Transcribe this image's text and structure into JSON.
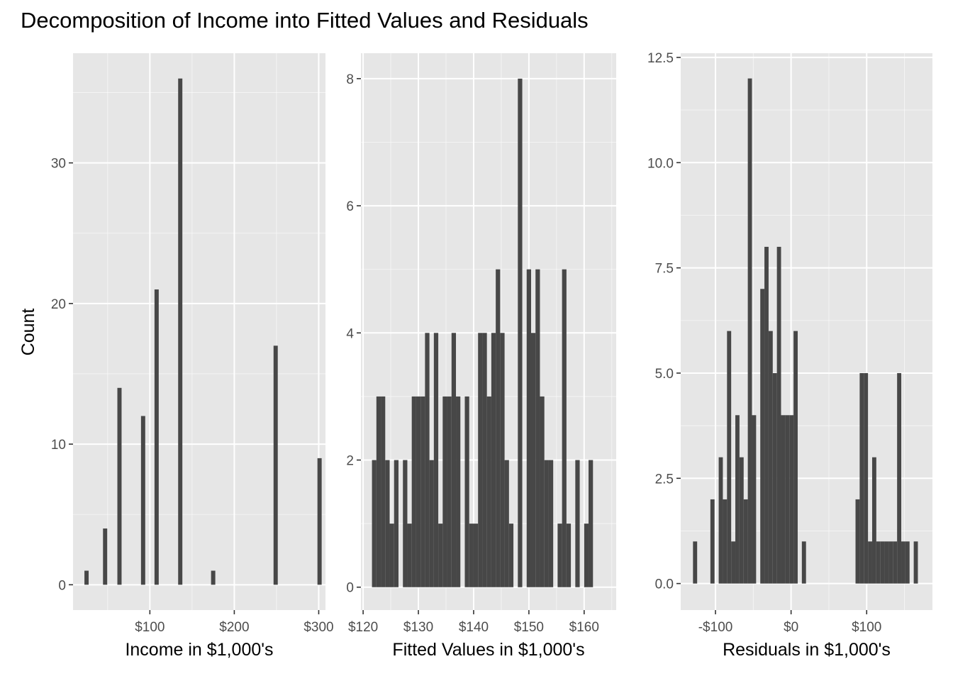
{
  "title": "Decomposition of Income into Fitted Values and Residuals",
  "ylabel": "Count",
  "colors": {
    "panel": "#e6e6e6",
    "grid_major": "#ffffff",
    "bar": "#474747",
    "tick_text": "#4d4d4d"
  },
  "chart_data": [
    {
      "type": "bar",
      "xlabel": "Income  in $1,000's",
      "xlim": [
        9,
        308
      ],
      "ylim": [
        -1.8,
        37.8
      ],
      "bin_width": 5,
      "x_ticks": [
        {
          "value": 100,
          "label": "$100"
        },
        {
          "value": 200,
          "label": "$200"
        },
        {
          "value": 300,
          "label": "$300"
        }
      ],
      "y_ticks": [
        {
          "value": 0,
          "label": "0"
        },
        {
          "value": 10,
          "label": "10"
        },
        {
          "value": 20,
          "label": "20"
        },
        {
          "value": 30,
          "label": "30"
        }
      ],
      "bars": [
        {
          "x": 25,
          "count": 1
        },
        {
          "x": 47,
          "count": 4
        },
        {
          "x": 64,
          "count": 14
        },
        {
          "x": 92,
          "count": 12
        },
        {
          "x": 108,
          "count": 21
        },
        {
          "x": 136,
          "count": 36
        },
        {
          "x": 175,
          "count": 1
        },
        {
          "x": 249,
          "count": 17
        },
        {
          "x": 301,
          "count": 9
        }
      ]
    },
    {
      "type": "bar",
      "xlabel": "Fitted Values in $1,000's",
      "xlim": [
        119.6,
        165.8
      ],
      "ylim": [
        -0.36,
        8.4
      ],
      "bin_width": 0.8,
      "x_ticks": [
        {
          "value": 120,
          "label": "$120"
        },
        {
          "value": 130,
          "label": "$130"
        },
        {
          "value": 140,
          "label": "$140"
        },
        {
          "value": 150,
          "label": "$150"
        },
        {
          "value": 160,
          "label": "$160"
        }
      ],
      "y_ticks": [
        {
          "value": 0,
          "label": "0"
        },
        {
          "value": 2,
          "label": "2"
        },
        {
          "value": 4,
          "label": "4"
        },
        {
          "value": 6,
          "label": "6"
        },
        {
          "value": 8,
          "label": "8"
        }
      ],
      "bars": [
        {
          "x": 122.0,
          "count": 2
        },
        {
          "x": 122.8,
          "count": 3
        },
        {
          "x": 123.6,
          "count": 3
        },
        {
          "x": 124.4,
          "count": 2
        },
        {
          "x": 125.2,
          "count": 1
        },
        {
          "x": 126.0,
          "count": 2
        },
        {
          "x": 127.6,
          "count": 2
        },
        {
          "x": 128.4,
          "count": 1
        },
        {
          "x": 129.2,
          "count": 3
        },
        {
          "x": 130.0,
          "count": 3
        },
        {
          "x": 130.8,
          "count": 3
        },
        {
          "x": 131.6,
          "count": 4
        },
        {
          "x": 132.4,
          "count": 2
        },
        {
          "x": 133.2,
          "count": 4
        },
        {
          "x": 134.0,
          "count": 1
        },
        {
          "x": 134.8,
          "count": 3
        },
        {
          "x": 135.6,
          "count": 3
        },
        {
          "x": 136.4,
          "count": 4
        },
        {
          "x": 137.2,
          "count": 3
        },
        {
          "x": 138.8,
          "count": 3
        },
        {
          "x": 139.6,
          "count": 1
        },
        {
          "x": 140.4,
          "count": 1
        },
        {
          "x": 141.2,
          "count": 4
        },
        {
          "x": 142.0,
          "count": 4
        },
        {
          "x": 142.8,
          "count": 3
        },
        {
          "x": 143.6,
          "count": 4
        },
        {
          "x": 144.4,
          "count": 5
        },
        {
          "x": 145.2,
          "count": 4
        },
        {
          "x": 146.0,
          "count": 2
        },
        {
          "x": 146.8,
          "count": 1
        },
        {
          "x": 148.4,
          "count": 8
        },
        {
          "x": 150.0,
          "count": 5
        },
        {
          "x": 150.8,
          "count": 4
        },
        {
          "x": 151.6,
          "count": 5
        },
        {
          "x": 152.4,
          "count": 3
        },
        {
          "x": 153.2,
          "count": 2
        },
        {
          "x": 154.0,
          "count": 2
        },
        {
          "x": 155.6,
          "count": 1
        },
        {
          "x": 156.4,
          "count": 5
        },
        {
          "x": 157.2,
          "count": 1
        },
        {
          "x": 158.8,
          "count": 2
        },
        {
          "x": 160.4,
          "count": 1
        },
        {
          "x": 161.2,
          "count": 2
        }
      ]
    },
    {
      "type": "bar",
      "xlabel": "Residuals in $1,000's",
      "xlim": [
        -146,
        187
      ],
      "ylim": [
        -0.63,
        12.6
      ],
      "bin_width": 5.5,
      "x_ticks": [
        {
          "value": -100,
          "label": "-$100"
        },
        {
          "value": 0,
          "label": "$0"
        },
        {
          "value": 100,
          "label": "$100"
        }
      ],
      "y_ticks": [
        {
          "value": 0,
          "label": "0.0"
        },
        {
          "value": 2.5,
          "label": "2.5"
        },
        {
          "value": 5,
          "label": "5.0"
        },
        {
          "value": 7.5,
          "label": "7.5"
        },
        {
          "value": 10,
          "label": "10.0"
        },
        {
          "value": 12.5,
          "label": "12.5"
        }
      ],
      "bars": [
        {
          "x": -127,
          "count": 1
        },
        {
          "x": -104,
          "count": 2
        },
        {
          "x": -93,
          "count": 3
        },
        {
          "x": -87.5,
          "count": 2
        },
        {
          "x": -82,
          "count": 6
        },
        {
          "x": -76.5,
          "count": 1
        },
        {
          "x": -71,
          "count": 4
        },
        {
          "x": -65.5,
          "count": 3
        },
        {
          "x": -60,
          "count": 2
        },
        {
          "x": -54.5,
          "count": 12
        },
        {
          "x": -49,
          "count": 4
        },
        {
          "x": -38,
          "count": 7
        },
        {
          "x": -32.5,
          "count": 8
        },
        {
          "x": -27,
          "count": 6
        },
        {
          "x": -21.5,
          "count": 5
        },
        {
          "x": -16,
          "count": 8
        },
        {
          "x": -10.5,
          "count": 4
        },
        {
          "x": -5,
          "count": 4
        },
        {
          "x": 0.5,
          "count": 4
        },
        {
          "x": 6,
          "count": 6
        },
        {
          "x": 17,
          "count": 1
        },
        {
          "x": 88,
          "count": 2
        },
        {
          "x": 93.5,
          "count": 5
        },
        {
          "x": 99,
          "count": 5
        },
        {
          "x": 104.5,
          "count": 1
        },
        {
          "x": 110,
          "count": 3
        },
        {
          "x": 115.5,
          "count": 1
        },
        {
          "x": 121,
          "count": 1
        },
        {
          "x": 126.5,
          "count": 1
        },
        {
          "x": 132,
          "count": 1
        },
        {
          "x": 137.5,
          "count": 1
        },
        {
          "x": 143,
          "count": 5
        },
        {
          "x": 148.5,
          "count": 1
        },
        {
          "x": 154,
          "count": 1
        },
        {
          "x": 165,
          "count": 1
        }
      ]
    }
  ]
}
